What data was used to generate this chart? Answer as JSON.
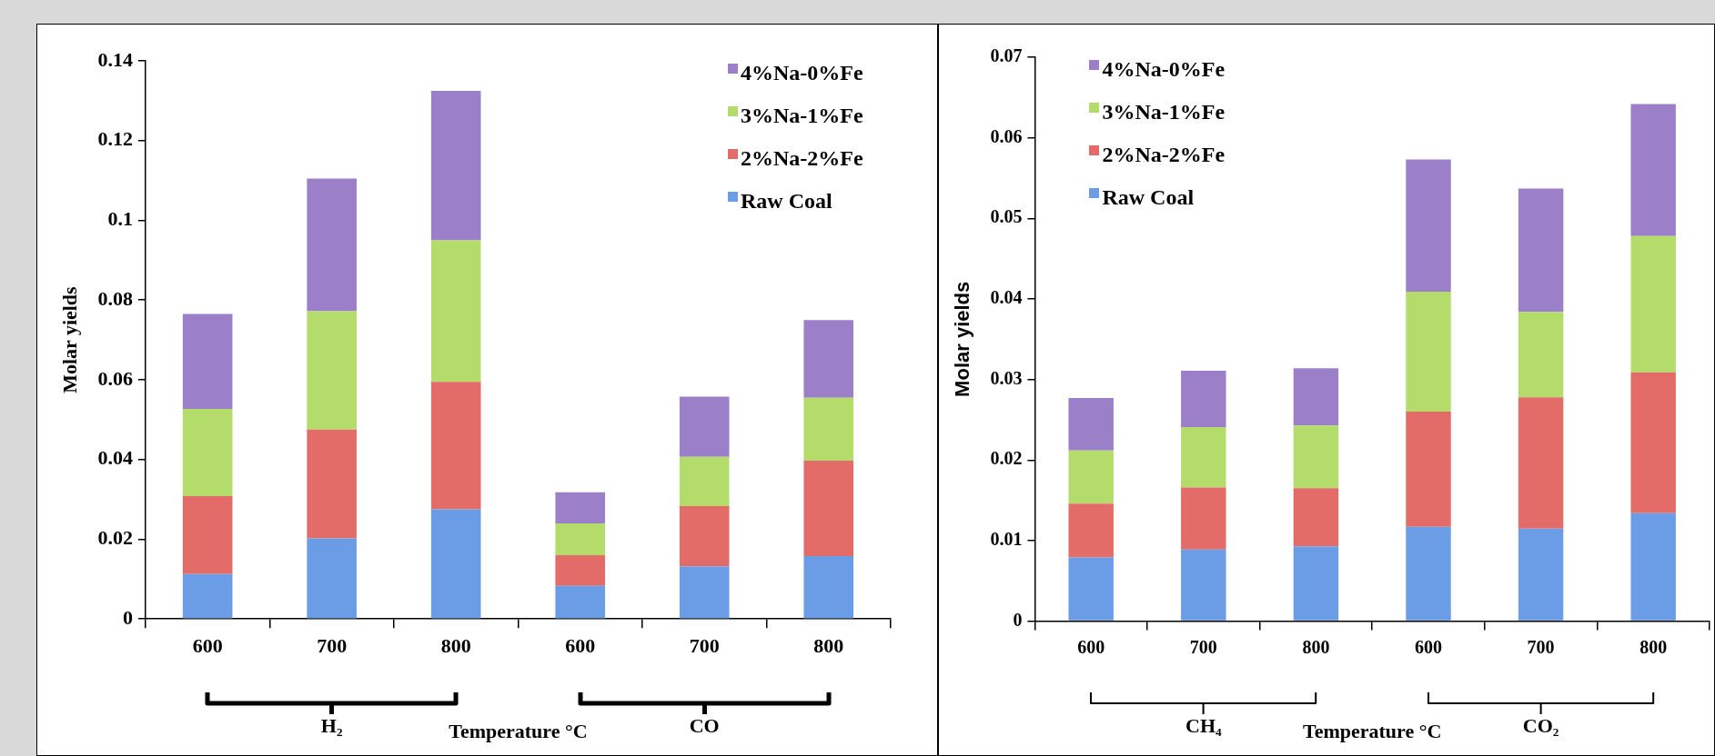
{
  "chart_data": [
    {
      "type": "bar",
      "stacked": true,
      "xlabel": "Temperature °C",
      "ylabel": "Molar yields",
      "categories": [
        "600",
        "700",
        "800",
        "600",
        "700",
        "800"
      ],
      "ylim": [
        0,
        0.14
      ],
      "yticks": [
        0,
        0.02,
        0.04,
        0.06,
        0.08,
        0.1,
        0.12,
        0.14
      ],
      "grid": false,
      "legend": "top right",
      "annotations": [
        "H₂",
        "CO"
      ],
      "series": [
        {
          "name": "Raw Coal",
          "color": "#6a9de6",
          "values": [
            0.0113,
            0.0202,
            0.0275,
            0.0083,
            0.0132,
            0.0158
          ]
        },
        {
          "name": "2%Na-2%Fe",
          "color": "#e36b68",
          "values": [
            0.0195,
            0.0273,
            0.032,
            0.0077,
            0.0151,
            0.0239
          ]
        },
        {
          "name": "3%Na-1%Fe",
          "color": "#b4dc6a",
          "values": [
            0.0219,
            0.0297,
            0.0355,
            0.008,
            0.0124,
            0.0158
          ]
        },
        {
          "name": "4%Na-0%Fe",
          "color": "#9b7fc8",
          "values": [
            0.0238,
            0.0333,
            0.0375,
            0.0078,
            0.0151,
            0.0195
          ]
        }
      ]
    },
    {
      "type": "bar",
      "stacked": true,
      "xlabel": "Temperature °C",
      "ylabel": "Molar yields",
      "categories": [
        "600",
        "700",
        "800",
        "600",
        "700",
        "800"
      ],
      "ylim": [
        0,
        0.07
      ],
      "yticks": [
        0,
        0.01,
        0.02,
        0.03,
        0.04,
        0.05,
        0.06,
        0.07
      ],
      "grid": false,
      "legend": "top left",
      "annotations": [
        "CH₄",
        "CO₂"
      ],
      "series": [
        {
          "name": "Raw Coal",
          "color": "#6a9de6",
          "values": [
            0.0079,
            0.0089,
            0.0093,
            0.0117,
            0.0115,
            0.0134
          ]
        },
        {
          "name": "2%Na-2%Fe",
          "color": "#e36b68",
          "values": [
            0.0067,
            0.0077,
            0.0072,
            0.0143,
            0.0163,
            0.0175
          ]
        },
        {
          "name": "3%Na-1%Fe",
          "color": "#b4dc6a",
          "values": [
            0.0066,
            0.0075,
            0.0078,
            0.0149,
            0.0106,
            0.0169
          ]
        },
        {
          "name": "4%Na-0%Fe",
          "color": "#9b7fc8",
          "values": [
            0.0065,
            0.007,
            0.0071,
            0.0164,
            0.0153,
            0.0164
          ]
        }
      ]
    }
  ]
}
